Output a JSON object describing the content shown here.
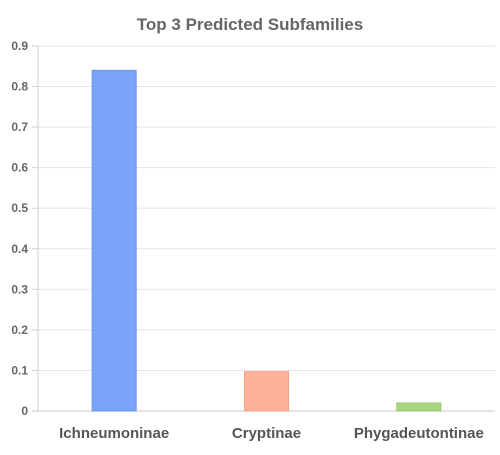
{
  "chart_data": {
    "type": "bar",
    "title": "Top 3 Predicted Subfamilies",
    "xlabel": "",
    "ylabel": "",
    "categories": [
      "Ichneumoninae",
      "Cryptinae",
      "Phygadeutontinae"
    ],
    "values": [
      0.84,
      0.097,
      0.02
    ],
    "ylim": [
      0,
      0.9
    ],
    "yticks": [
      "0",
      "0.1",
      "0.2",
      "0.3",
      "0.4",
      "0.5",
      "0.6",
      "0.7",
      "0.8",
      "0.9"
    ],
    "colors": [
      "#7BA3F7",
      "#FDB19A",
      "#A9D57F"
    ],
    "border_colors": [
      "#6A95EE",
      "#F3A28A",
      "#98C86D"
    ],
    "grid": true,
    "legend": "none"
  }
}
